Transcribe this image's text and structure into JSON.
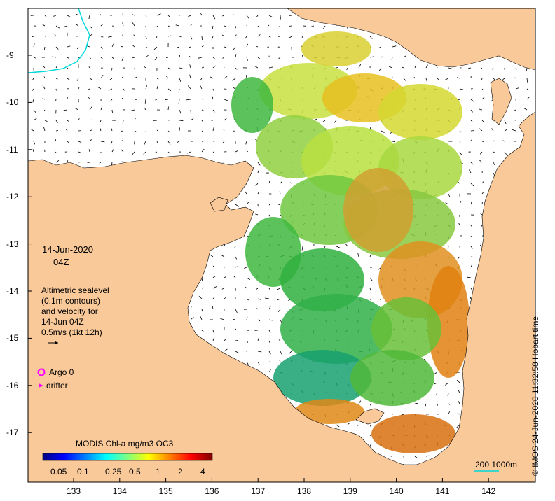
{
  "map": {
    "date": "14-Jun-2020",
    "time": "04Z",
    "description_lines": [
      "Altimetric sealevel",
      "(0.1m contours)",
      "and velocity for",
      "14-Jun 04Z",
      "0.5m/s (1kt 12h)"
    ],
    "legend": {
      "argo": "Argo 0",
      "drifter": "drifter",
      "argo_color": "#ff00ff",
      "drifter_color": "#ff00ff"
    },
    "colorbar": {
      "title": "MODIS Chl-a mg/m3 OC3",
      "ticks": [
        "0.05",
        "0.1",
        "0.25",
        "0.5",
        "1",
        "2",
        "4"
      ],
      "colors": [
        "#00007f",
        "#0000ff",
        "#007fff",
        "#00ffff",
        "#7fff7f",
        "#ffff00",
        "#ff7f00",
        "#ff0000",
        "#7f0000"
      ]
    },
    "scale_bar": "200  1000m",
    "credit": "© IMOS 24-Jun-2020 11:32:58 Hobart time",
    "x_ticks": [
      "133",
      "134",
      "135",
      "136",
      "137",
      "138",
      "139",
      "140",
      "141",
      "142"
    ],
    "y_ticks": [
      "-9",
      "-10",
      "-11",
      "-12",
      "-13",
      "-14",
      "-15",
      "-16",
      "-17"
    ],
    "colors": {
      "land": "#f9c99a",
      "water": "#ffffff",
      "velocity_arrow": "#000000",
      "isobath": "#00d8d8"
    }
  }
}
